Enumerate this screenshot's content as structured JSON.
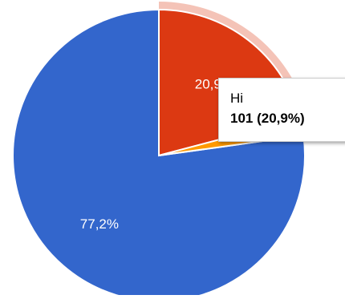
{
  "chart_data": {
    "type": "pie",
    "slices": [
      {
        "label": "",
        "value": 77.2,
        "display": "77,2%",
        "color": "#3366cc"
      },
      {
        "label": "Hi",
        "value": 20.9,
        "display": "20,9%",
        "color": "#dc3912"
      },
      {
        "label": "",
        "value": 1.9,
        "display": "",
        "color": "#ff9900"
      }
    ],
    "highlighted_slice": 1
  },
  "tooltip": {
    "label": "Hi",
    "value": "101 (20,9%)"
  }
}
